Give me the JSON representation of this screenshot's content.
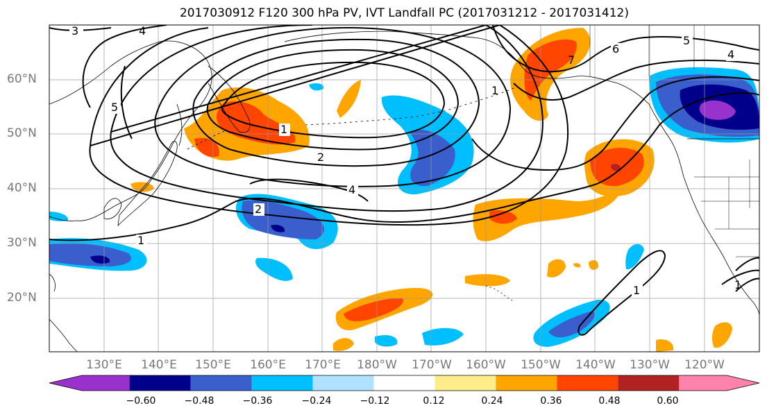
{
  "title": "2017030912 F120 300 hPa PV, IVT Landfall PC (2017031212 - 2017031412)",
  "lat_labels": [
    "60°N",
    "50°N",
    "40°N",
    "30°N",
    "20°N"
  ],
  "lon_labels": [
    "130°E",
    "140°E",
    "150°E",
    "160°E",
    "170°E",
    "180°W",
    "170°W",
    "160°W",
    "150°W",
    "140°W",
    "130°W",
    "120°W"
  ],
  "contour_labels": [
    "3",
    "4",
    "5",
    "1",
    "2",
    "4",
    "2",
    "1",
    "1",
    "5",
    "4",
    "6",
    "7",
    "1",
    "1"
  ],
  "colorbar": {
    "ticks": [
      "−0.60",
      "−0.48",
      "−0.36",
      "−0.24",
      "−0.12",
      "0.12",
      "0.24",
      "0.36",
      "0.48",
      "0.60"
    ],
    "colors": [
      "#9932cc",
      "#00008b",
      "#3a5fcd",
      "#00bfff",
      "#b0e2ff",
      "#ffffff",
      "#ffec8b",
      "#ffa500",
      "#ff4500",
      "#b22222",
      "#ff82ab"
    ]
  },
  "colors": {
    "grid": "#999999",
    "coast": "#000000",
    "contour": "#000000"
  }
}
